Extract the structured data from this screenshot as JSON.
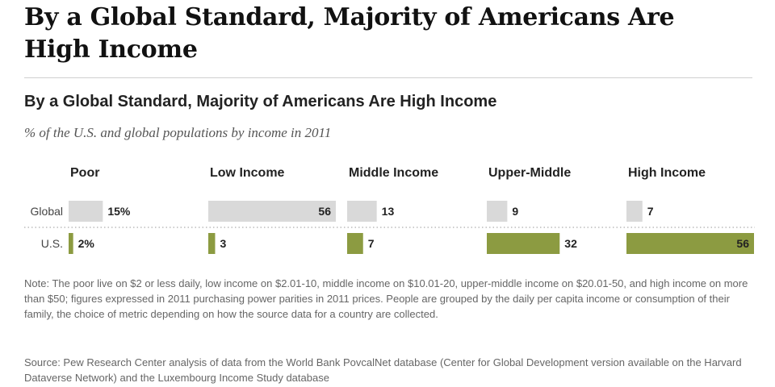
{
  "headline": "By a Global Standard, Majority of Americans Are High Income",
  "note": "Note: The poor live on $2 or less daily, low income on $2.01-10, middle income on $10.01-20, upper-middle income on $20.01-50, and high income on more than $50; figures expressed in 2011 purchasing power parities in 2011 prices. People are grouped by the daily per capita income or consumption of their family, the choice of metric depending on how the source data for a country are collected.",
  "source": "Source: Pew Research Center analysis of data from the World Bank PovcalNet database (Center for Global Development version available on the Harvard Dataverse Network) and the Luxembourg Income Study database",
  "colors": {
    "global": "#d9d9d9",
    "us": "#8c9b41",
    "text": "#222222",
    "rule": "#cfcfcf"
  },
  "chart_data": {
    "type": "bar",
    "title": "By a Global Standard, Majority of Americans Are High Income",
    "subtitle": "% of the U.S. and global populations by income in 2011",
    "categories": [
      "Poor",
      "Low Income",
      "Middle Income",
      "Upper-Middle",
      "High Income"
    ],
    "series": [
      {
        "name": "Global",
        "values": [
          15,
          56,
          13,
          9,
          7
        ],
        "labels": [
          "15%",
          "56",
          "13",
          "9",
          "7"
        ]
      },
      {
        "name": "U.S.",
        "values": [
          2,
          3,
          7,
          32,
          56
        ],
        "labels": [
          "2%",
          "3",
          "7",
          "32",
          "56"
        ]
      }
    ],
    "unit": "%",
    "xlim": [
      0,
      56
    ]
  }
}
